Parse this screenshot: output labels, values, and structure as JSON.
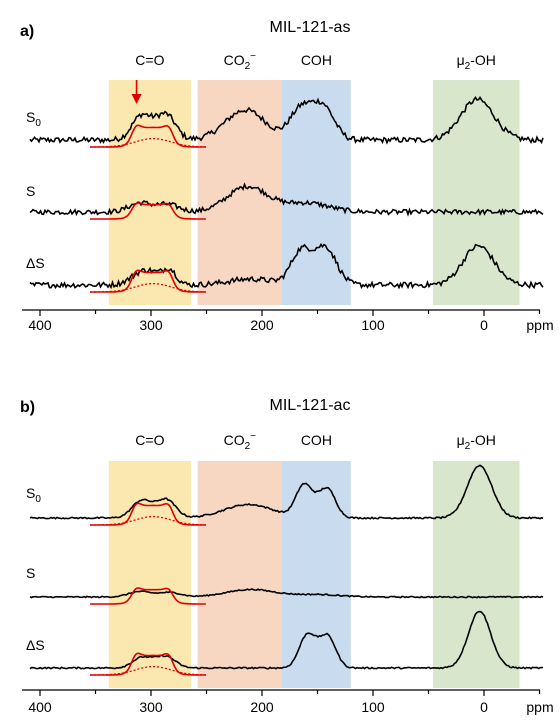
{
  "panels": [
    {
      "id": "a",
      "panel_label": "a)",
      "title": "MIL-121-as",
      "regions": [
        {
          "name": "C=O",
          "label": "C=O",
          "from": 338,
          "to": 264,
          "color": "#fbe7b0"
        },
        {
          "name": "CO2-",
          "label_main": "CO",
          "label_sub": "2",
          "label_sup": "−",
          "from": 258,
          "to": 182,
          "color": "#f8d7c2"
        },
        {
          "name": "COH",
          "label": "COH",
          "from": 182,
          "to": 120,
          "color": "#c9dcef"
        },
        {
          "name": "mu2-OH",
          "label_main": "μ",
          "label_sub": "2",
          "label_rest": "-OH",
          "from": 46,
          "to": -32,
          "color": "#d8e6cc"
        }
      ],
      "traces": [
        {
          "label_main": "S",
          "label_sub": "0"
        },
        {
          "label_main": "S",
          "label_sub": ""
        },
        {
          "label_main": "ΔS",
          "label_sub": ""
        }
      ],
      "axis": {
        "ticks": [
          "400",
          "300",
          "200",
          "100",
          "0"
        ],
        "unit": "ppm"
      }
    },
    {
      "id": "b",
      "panel_label": "b)",
      "title": "MIL-121-ac",
      "regions": [
        {
          "name": "C=O",
          "label": "C=O",
          "from": 338,
          "to": 264,
          "color": "#fbe7b0"
        },
        {
          "name": "CO2-",
          "label_main": "CO",
          "label_sub": "2",
          "label_sup": "−",
          "from": 258,
          "to": 182,
          "color": "#f8d7c2"
        },
        {
          "name": "COH",
          "label": "COH",
          "from": 182,
          "to": 120,
          "color": "#c9dcef"
        },
        {
          "name": "mu2-OH",
          "label_main": "μ",
          "label_sub": "2",
          "label_rest": "-OH",
          "from": 46,
          "to": -32,
          "color": "#d8e6cc"
        }
      ],
      "traces": [
        {
          "label_main": "S",
          "label_sub": "0"
        },
        {
          "label_main": "S",
          "label_sub": ""
        },
        {
          "label_main": "ΔS",
          "label_sub": ""
        }
      ],
      "axis": {
        "ticks": [
          "400",
          "300",
          "200",
          "100",
          "0"
        ],
        "unit": "ppm"
      }
    }
  ],
  "chart_data": [
    {
      "type": "line",
      "title": "MIL-121-as",
      "xlim": [
        400,
        -50
      ],
      "xlabel": "ppm",
      "x_ticks": [
        400,
        300,
        200,
        100,
        0
      ],
      "reversed_x": true,
      "series": [
        {
          "name": "S0",
          "peaks": [
            {
              "x": 310,
              "h": 0.55,
              "w": 8
            },
            {
              "x": 285,
              "h": 0.6,
              "w": 8
            },
            {
              "x": 298,
              "h": 0.45,
              "w": 12
            },
            {
              "x": 215,
              "h": 1.0,
              "w": 18
            },
            {
              "x": 165,
              "h": 1.0,
              "w": 10
            },
            {
              "x": 145,
              "h": 1.1,
              "w": 10
            },
            {
              "x": 6,
              "h": 1.35,
              "w": 15
            }
          ],
          "noise": 0.09
        },
        {
          "name": "S",
          "peaks": [
            {
              "x": 310,
              "h": 0.3,
              "w": 10
            },
            {
              "x": 285,
              "h": 0.25,
              "w": 10
            },
            {
              "x": 213,
              "h": 0.85,
              "w": 18
            },
            {
              "x": 160,
              "h": 0.3,
              "w": 20
            }
          ],
          "noise": 0.08
        },
        {
          "name": "ΔS",
          "peaks": [
            {
              "x": 310,
              "h": 0.3,
              "w": 10
            },
            {
              "x": 283,
              "h": 0.45,
              "w": 6
            },
            {
              "x": 298,
              "h": 0.3,
              "w": 10
            },
            {
              "x": 210,
              "h": 0.2,
              "w": 20
            },
            {
              "x": 165,
              "h": 1.1,
              "w": 9
            },
            {
              "x": 143,
              "h": 1.25,
              "w": 10
            },
            {
              "x": 5,
              "h": 1.3,
              "w": 14
            }
          ],
          "noise": 0.09
        }
      ],
      "fit_series": [
        {
          "trace": "S0",
          "components": [
            "sum",
            "dotted"
          ]
        },
        {
          "trace": "S",
          "components": [
            "sum"
          ]
        },
        {
          "trace": "ΔS",
          "components": [
            "sum",
            "dotted"
          ]
        }
      ],
      "annotations": [
        {
          "type": "arrow",
          "x": 313,
          "color": "#e00000"
        }
      ]
    },
    {
      "type": "line",
      "title": "MIL-121-ac",
      "xlim": [
        400,
        -50
      ],
      "xlabel": "",
      "x_ticks": [
        400,
        300,
        200,
        100,
        0
      ],
      "reversed_x": true,
      "series": [
        {
          "name": "S0",
          "peaks": [
            {
              "x": 310,
              "h": 0.4,
              "w": 8
            },
            {
              "x": 285,
              "h": 0.45,
              "w": 8
            },
            {
              "x": 298,
              "h": 0.3,
              "w": 12
            },
            {
              "x": 212,
              "h": 0.45,
              "w": 22
            },
            {
              "x": 163,
              "h": 0.9,
              "w": 7
            },
            {
              "x": 140,
              "h": 0.7,
              "w": 7
            },
            {
              "x": 150,
              "h": 0.45,
              "w": 10
            },
            {
              "x": 4,
              "h": 1.75,
              "w": 11
            }
          ],
          "noise": 0.025
        },
        {
          "name": "S",
          "peaks": [
            {
              "x": 310,
              "h": 0.18,
              "w": 10
            },
            {
              "x": 283,
              "h": 0.15,
              "w": 10
            },
            {
              "x": 210,
              "h": 0.25,
              "w": 22
            },
            {
              "x": 150,
              "h": 0.08,
              "w": 20
            }
          ],
          "noise": 0.02
        },
        {
          "name": "ΔS",
          "peaks": [
            {
              "x": 310,
              "h": 0.25,
              "w": 8
            },
            {
              "x": 285,
              "h": 0.3,
              "w": 8
            },
            {
              "x": 298,
              "h": 0.2,
              "w": 10
            },
            {
              "x": 160,
              "h": 0.85,
              "w": 7
            },
            {
              "x": 140,
              "h": 0.8,
              "w": 7
            },
            {
              "x": 150,
              "h": 0.45,
              "w": 10
            },
            {
              "x": 4,
              "h": 1.9,
              "w": 10
            }
          ],
          "noise": 0.025
        }
      ],
      "fit_series": [
        {
          "trace": "S0",
          "components": [
            "sum",
            "dotted"
          ]
        },
        {
          "trace": "S",
          "components": [
            "sum"
          ]
        },
        {
          "trace": "ΔS",
          "components": [
            "sum",
            "dotted"
          ]
        }
      ]
    }
  ]
}
